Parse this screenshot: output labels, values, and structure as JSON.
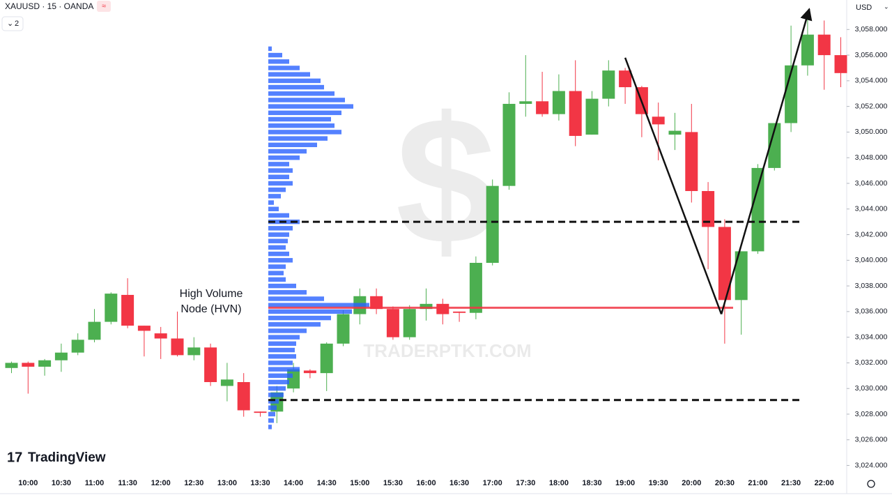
{
  "chart_data": {
    "type": "candlestick",
    "title": "XAUUSD · 15 · OANDA",
    "indicator_count": "2",
    "currency": "USD",
    "logo": "TradingView",
    "watermark": "TRADERPTKT.COM",
    "up_color": "#4caf50",
    "down_color": "#f23645",
    "categories": [
      null,
      "10:00",
      null,
      "10:30",
      null,
      "11:00",
      null,
      "11:30",
      null,
      "12:00",
      null,
      "12:30",
      null,
      "13:00",
      null,
      "13:30",
      null,
      "14:00",
      null,
      "14:30",
      null,
      "15:00",
      null,
      "15:30",
      null,
      "16:00",
      null,
      "16:30",
      null,
      "17:00",
      null,
      "17:30",
      null,
      "18:00",
      null,
      "18:30",
      null,
      "19:00",
      null,
      "19:30",
      null,
      "20:00",
      null,
      "20:30",
      null,
      "21:00",
      null,
      "21:30",
      null,
      "22:00",
      null
    ],
    "open": [
      3031.6,
      3032.0,
      3031.7,
      3032.2,
      3032.8,
      3033.8,
      3035.2,
      3037.3,
      3034.9,
      3034.3,
      3033.9,
      3032.6,
      3033.2,
      3030.2,
      3030.5,
      3028.2,
      3028.2,
      3030.0,
      3031.4,
      3031.2,
      3033.5,
      3035.8,
      3037.2,
      3036.2,
      3034.0,
      3036.2,
      3036.6,
      3036.0,
      3035.9,
      3039.8,
      3045.8,
      3052.2,
      3052.4,
      3051.4,
      3053.2,
      3049.8,
      3052.6,
      3054.8,
      3053.5,
      3051.2,
      3049.8,
      3050.0,
      3045.4,
      3042.6,
      3036.9,
      3040.7,
      3047.2,
      3050.7,
      3055.2,
      3057.6,
      3056.0
    ],
    "high": [
      3032.1,
      3032.1,
      3032.3,
      3033.5,
      3034.3,
      3036.2,
      3037.5,
      3038.6,
      3034.9,
      3034.8,
      3036.0,
      3034.0,
      3033.5,
      3032.0,
      3031.2,
      3028.2,
      3030.2,
      3032.0,
      3031.5,
      3033.6,
      3036.1,
      3037.8,
      3037.8,
      3036.4,
      3036.5,
      3037.8,
      3037.0,
      3036.0,
      3040.3,
      3046.3,
      3053.1,
      3056.0,
      3054.7,
      3054.5,
      3055.6,
      3053.2,
      3055.6,
      3055.0,
      3053.6,
      3052.3,
      3051.5,
      3052.2,
      3046.1,
      3043.2,
      3040.7,
      3047.5,
      3050.7,
      3058.3,
      3059.3,
      3058.7,
      3057.4
    ],
    "low": [
      3031.2,
      3029.6,
      3031.0,
      3031.3,
      3032.6,
      3033.6,
      3035.0,
      3034.7,
      3032.5,
      3032.3,
      3032.5,
      3032.2,
      3030.2,
      3029.0,
      3027.8,
      3027.8,
      3027.3,
      3029.7,
      3030.8,
      3029.8,
      3033.3,
      3035.0,
      3035.8,
      3033.8,
      3033.8,
      3035.3,
      3035.0,
      3035.2,
      3035.4,
      3039.6,
      3045.5,
      3051.2,
      3051.2,
      3050.9,
      3048.9,
      3049.8,
      3052.0,
      3052.2,
      3049.6,
      3047.8,
      3048.6,
      3044.5,
      3039.3,
      3033.5,
      3034.2,
      3040.5,
      3047.0,
      3050.0,
      3054.4,
      3053.3,
      3053.5
    ],
    "close": [
      3032.0,
      3031.7,
      3032.2,
      3032.8,
      3033.8,
      3035.2,
      3037.4,
      3034.9,
      3034.5,
      3033.9,
      3032.6,
      3033.2,
      3030.5,
      3030.7,
      3028.3,
      3028.1,
      3029.7,
      3031.5,
      3031.2,
      3033.5,
      3035.8,
      3037.2,
      3036.2,
      3034.0,
      3036.2,
      3036.6,
      3035.8,
      3035.9,
      3039.8,
      3045.8,
      3052.2,
      3052.4,
      3051.4,
      3053.2,
      3049.7,
      3052.6,
      3054.8,
      3053.5,
      3051.4,
      3050.6,
      3050.1,
      3045.4,
      3042.6,
      3036.9,
      3040.7,
      3047.2,
      3050.7,
      3055.2,
      3057.6,
      3056.0,
      3054.6
    ],
    "ylim": [
      3021.8,
      3060.3
    ],
    "yticks": [
      {
        "value": 3024,
        "label": "3,024.000"
      },
      {
        "value": 3026,
        "label": "3,026.000"
      },
      {
        "value": 3028,
        "label": "3,028.000"
      },
      {
        "value": 3030,
        "label": "3,030.000"
      },
      {
        "value": 3032,
        "label": "3,032.000"
      },
      {
        "value": 3034,
        "label": "3,034.000"
      },
      {
        "value": 3036,
        "label": "3,036.000"
      },
      {
        "value": 3038,
        "label": "3,038.000"
      },
      {
        "value": 3040,
        "label": "3,040.000"
      },
      {
        "value": 3042,
        "label": "3,042.000"
      },
      {
        "value": 3044,
        "label": "3,044.000"
      },
      {
        "value": 3046,
        "label": "3,046.000"
      },
      {
        "value": 3048,
        "label": "3,048.000"
      },
      {
        "value": 3050,
        "label": "3,050.000"
      },
      {
        "value": 3052,
        "label": "3,052.000"
      },
      {
        "value": 3054,
        "label": "3,054.000"
      },
      {
        "value": 3056,
        "label": "3,056.000"
      },
      {
        "value": 3058,
        "label": "3,058.000"
      }
    ],
    "volume_profile": {
      "color": "#2962ff",
      "prices": [
        3056.5,
        3056.0,
        3055.5,
        3055.0,
        3054.5,
        3054.0,
        3053.5,
        3053.0,
        3052.5,
        3052.0,
        3051.5,
        3051.0,
        3050.5,
        3050.0,
        3049.5,
        3049.0,
        3048.5,
        3048.0,
        3047.5,
        3047.0,
        3046.5,
        3046.0,
        3045.5,
        3045.0,
        3044.5,
        3044.0,
        3043.5,
        3043.0,
        3042.5,
        3042.0,
        3041.5,
        3041.0,
        3040.5,
        3040.0,
        3039.5,
        3039.0,
        3038.5,
        3038.0,
        3037.5,
        3037.0,
        3036.5,
        3036.0,
        3035.5,
        3035.0,
        3034.5,
        3034.0,
        3033.5,
        3033.0,
        3032.5,
        3032.0,
        3031.5,
        3031.0,
        3030.5,
        3030.0,
        3029.5,
        3029.0,
        3028.5,
        3028.0,
        3027.5,
        3027.0
      ],
      "volumes": [
        5,
        20,
        30,
        45,
        60,
        75,
        80,
        95,
        110,
        122,
        105,
        90,
        95,
        105,
        85,
        70,
        55,
        45,
        30,
        35,
        30,
        35,
        25,
        18,
        8,
        15,
        30,
        45,
        35,
        30,
        28,
        25,
        30,
        35,
        25,
        22,
        25,
        40,
        55,
        80,
        145,
        120,
        90,
        75,
        55,
        45,
        40,
        38,
        40,
        35,
        45,
        35,
        30,
        25,
        22,
        15,
        12,
        10,
        8,
        5
      ]
    },
    "levels": [
      {
        "value": 3043.0,
        "style": "dashed",
        "color": "#111111"
      },
      {
        "value": 3029.1,
        "style": "dashed",
        "color": "#111111"
      },
      {
        "value": 3036.3,
        "style": "solid",
        "color": "#f23645"
      }
    ],
    "annotation": {
      "lines": [
        "High Volume",
        "Node (HVN)"
      ]
    },
    "trend_line": {
      "color": "#111111",
      "points": [
        {
          "x": 37,
          "y": 3055.8
        },
        {
          "x": 42.8,
          "y": 3035.8
        },
        {
          "x": 48.1,
          "y": 3059.6
        }
      ]
    }
  }
}
